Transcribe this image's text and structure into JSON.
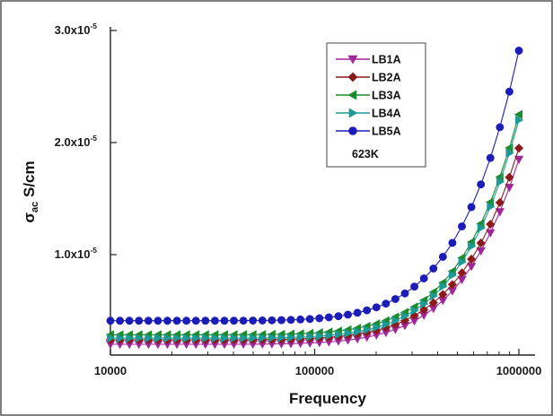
{
  "chart_data": {
    "type": "scatter",
    "xlabel": "Frequency",
    "ylabel_main": "σ",
    "ylabel_sub": "ac",
    "ylabel_rest": " S/cm",
    "x_scale": "log",
    "xlim": [
      10000,
      1000000
    ],
    "ylim": [
      2e-06,
      3.1e-05
    ],
    "x_ticks": [
      {
        "value": 10000,
        "label": "10000"
      },
      {
        "value": 100000,
        "label": "100000"
      },
      {
        "value": 1000000,
        "label": "1000000"
      }
    ],
    "y_ticks": [
      {
        "value": 1e-05,
        "mantissa": "1.0x10",
        "exponent": "-5"
      },
      {
        "value": 2e-05,
        "mantissa": "2.0x10",
        "exponent": "-5"
      },
      {
        "value": 3e-05,
        "mantissa": "3.0x10",
        "exponent": "-5"
      }
    ],
    "legend_note": "623K",
    "legend_position": "top-right",
    "series": [
      {
        "name": "LB1A",
        "color": "#A0279A",
        "marker": "triangle-down",
        "base": 2e-06,
        "end": 1.85e-05
      },
      {
        "name": "LB2A",
        "color": "#8B1A1A",
        "marker": "diamond",
        "base": 2.4e-06,
        "end": 1.95e-05
      },
      {
        "name": "LB3A",
        "color": "#1E8A2E",
        "marker": "triangle-left",
        "base": 2.85e-06,
        "end": 2.25e-05
      },
      {
        "name": "LB4A",
        "color": "#1E9A96",
        "marker": "triangle-right",
        "base": 2.55e-06,
        "end": 2.2e-05
      },
      {
        "name": "LB5A",
        "color": "#1C1CB8",
        "marker": "circle",
        "base": 4.1e-06,
        "end": 2.82e-05
      }
    ]
  }
}
